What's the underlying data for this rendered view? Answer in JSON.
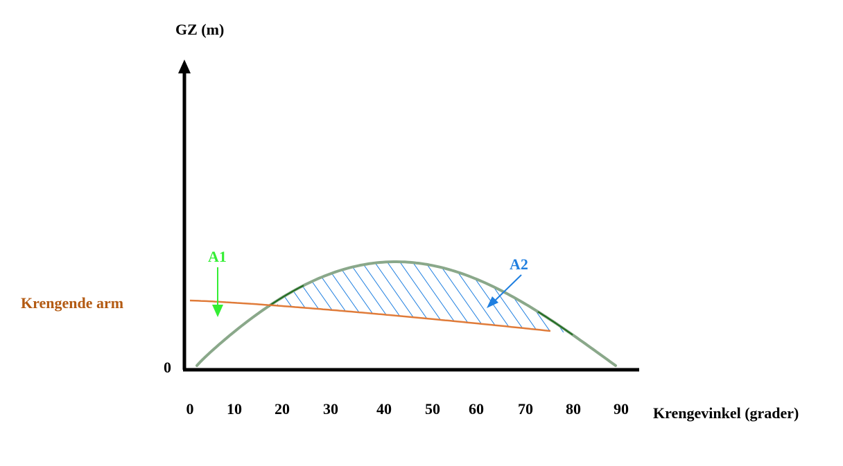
{
  "y_axis_label": "GZ (m)",
  "x_axis_label": "Krengevinkel (grader)",
  "origin_label": "0",
  "heeling_arm_label": "Krengende arm",
  "area1_label": "A1",
  "area2_label": "A2",
  "x_ticks": [
    "0",
    "10",
    "20",
    "30",
    "40",
    "50",
    "60",
    "70",
    "80",
    "90"
  ],
  "colors": {
    "axis": "#000000",
    "gz_curve": "#8aa88a",
    "heeling_arm": "#e07b39",
    "heeling_arm_label": "#b35a12",
    "area1": "#33ee33",
    "area2": "#1f7fe0",
    "curve_dark": "#1e6b1e"
  },
  "icons": {
    "area1_pointer": "arrow-down-icon",
    "area2_pointer": "arrow-diagonal-icon"
  }
}
